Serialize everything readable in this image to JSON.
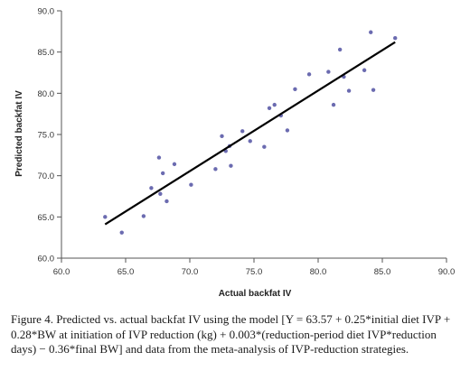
{
  "chart_data": {
    "type": "scatter",
    "xlabel": "Actual backfat IV",
    "ylabel": "Predicted backfat IV",
    "xlim": [
      60,
      90
    ],
    "ylim": [
      60,
      90
    ],
    "x_ticks": [
      "60.0",
      "65.0",
      "70.0",
      "75.0",
      "80.0",
      "85.0",
      "90.0"
    ],
    "y_ticks": [
      "60.0",
      "65.0",
      "70.0",
      "75.0",
      "80.0",
      "85.0",
      "90.0"
    ],
    "x_tick_values": [
      60,
      65,
      70,
      75,
      80,
      85,
      90
    ],
    "y_tick_values": [
      60,
      65,
      70,
      75,
      80,
      85,
      90
    ],
    "grid": false,
    "legend": "none",
    "point_color": "#6b6bb0",
    "line_color": "#000000",
    "points": [
      [
        63.4,
        65.0
      ],
      [
        64.7,
        63.1
      ],
      [
        66.4,
        65.1
      ],
      [
        67.0,
        68.5
      ],
      [
        67.6,
        72.2
      ],
      [
        67.7,
        67.8
      ],
      [
        67.9,
        70.3
      ],
      [
        68.2,
        66.9
      ],
      [
        68.8,
        71.4
      ],
      [
        70.1,
        68.9
      ],
      [
        72.0,
        70.8
      ],
      [
        72.5,
        74.8
      ],
      [
        72.8,
        73.0
      ],
      [
        73.1,
        73.6
      ],
      [
        73.2,
        71.2
      ],
      [
        74.1,
        75.4
      ],
      [
        74.7,
        74.2
      ],
      [
        75.8,
        73.5
      ],
      [
        76.2,
        78.2
      ],
      [
        76.6,
        78.6
      ],
      [
        77.1,
        77.3
      ],
      [
        77.6,
        75.5
      ],
      [
        78.2,
        80.5
      ],
      [
        79.3,
        82.3
      ],
      [
        80.8,
        82.6
      ],
      [
        81.2,
        78.6
      ],
      [
        81.7,
        85.3
      ],
      [
        82.0,
        82.0
      ],
      [
        82.4,
        80.3
      ],
      [
        83.6,
        82.8
      ],
      [
        84.1,
        87.4
      ],
      [
        84.3,
        80.4
      ],
      [
        86.0,
        86.7
      ]
    ],
    "regression_line": {
      "x": [
        63.4,
        86.0
      ],
      "y": [
        64.1,
        86.2
      ]
    }
  },
  "caption": "Figure 4. Predicted vs. actual backfat IV using the model [Y = 63.57 + 0.25*initial diet IVP + 0.28*BW at initiation of IVP reduction (kg) + 0.003*(reduction-period diet IVP*reduction days) − 0.36*final BW] and data from the meta-analysis of IVP-reduction strategies."
}
